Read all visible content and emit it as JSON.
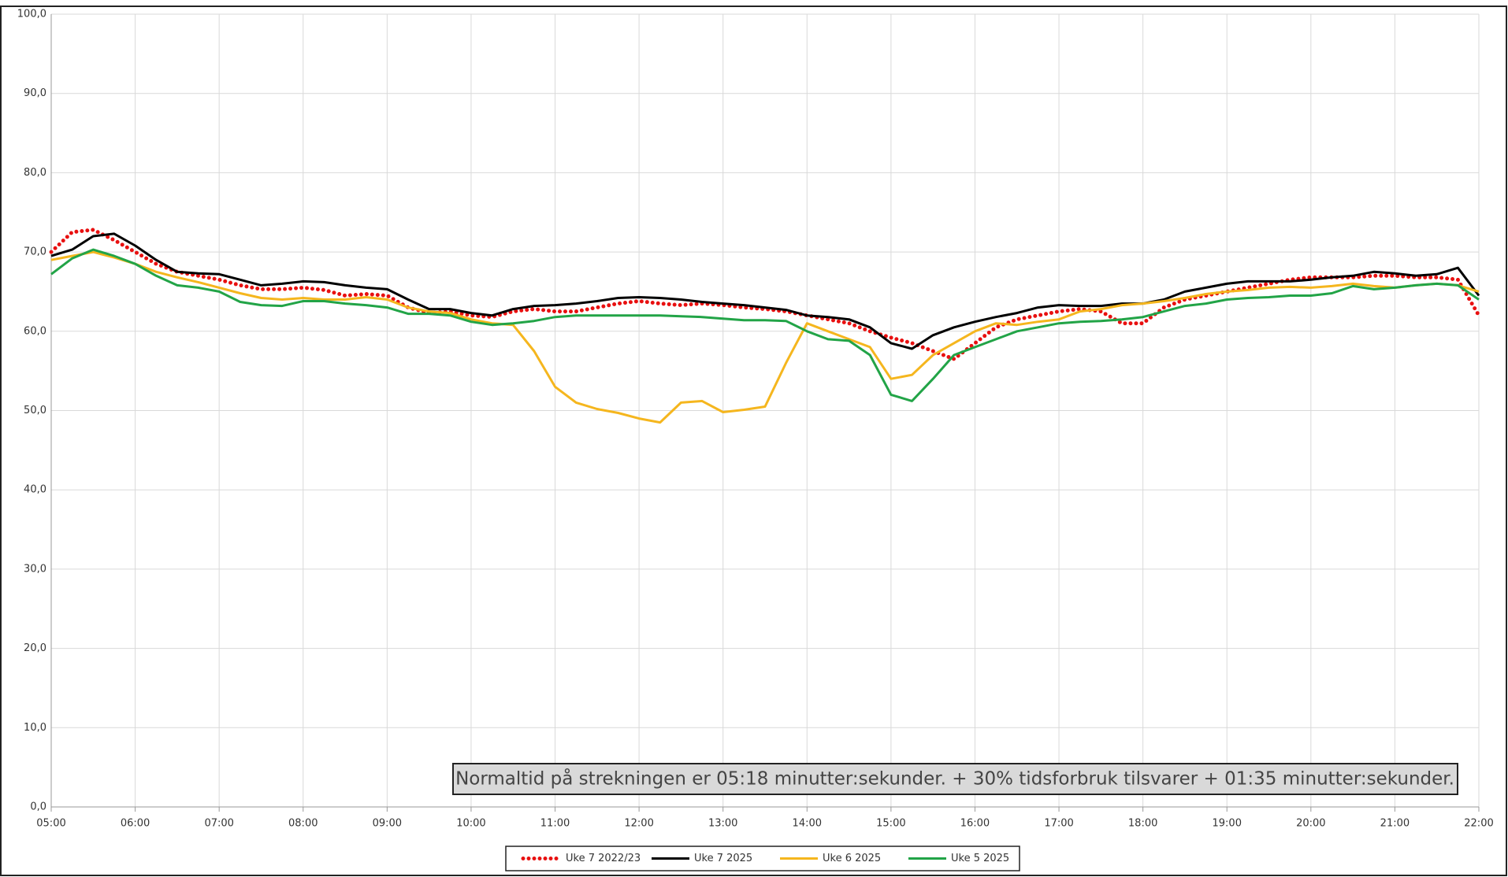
{
  "chart_data": {
    "type": "line",
    "x": [
      5,
      5.25,
      5.5,
      5.75,
      6,
      6.25,
      6.5,
      6.75,
      7,
      7.25,
      7.5,
      7.75,
      8,
      8.25,
      8.5,
      8.75,
      9,
      9.25,
      9.5,
      9.75,
      10,
      10.25,
      10.5,
      10.75,
      11,
      11.25,
      11.5,
      11.75,
      12,
      12.25,
      12.5,
      12.75,
      13,
      13.25,
      13.5,
      13.75,
      14,
      14.25,
      14.5,
      14.75,
      15,
      15.25,
      15.5,
      15.75,
      16,
      16.25,
      16.5,
      16.75,
      17,
      17.25,
      17.5,
      17.75,
      18,
      18.25,
      18.5,
      18.75,
      19,
      19.25,
      19.5,
      19.75,
      20,
      20.25,
      20.5,
      20.75,
      21,
      21.25,
      21.5,
      21.75,
      22
    ],
    "series": [
      {
        "name": "Uke 7 2022/23",
        "color": "#e81010",
        "style": "dotted",
        "values": [
          70,
          72.5,
          72.8,
          71.5,
          70,
          68.5,
          67.5,
          67,
          66.5,
          65.8,
          65.3,
          65.3,
          65.5,
          65.2,
          64.5,
          64.7,
          64.5,
          63,
          62.3,
          62.5,
          62,
          61.8,
          62.5,
          62.8,
          62.5,
          62.5,
          63,
          63.5,
          63.8,
          63.5,
          63.3,
          63.5,
          63.3,
          63,
          62.8,
          62.5,
          62,
          61.5,
          61,
          60,
          59.2,
          58.5,
          57.5,
          56.5,
          58.5,
          60.5,
          61.5,
          62,
          62.5,
          62.8,
          62.5,
          61,
          61,
          63,
          64,
          64.5,
          65,
          65.5,
          66,
          66.5,
          66.8,
          66.8,
          66.8,
          67,
          67,
          66.8,
          66.8,
          66.5,
          62
        ]
      },
      {
        "name": "Uke 7 2025",
        "color": "#000000",
        "style": "solid",
        "values": [
          69.5,
          70.3,
          72,
          72.3,
          70.8,
          69,
          67.5,
          67.3,
          67.2,
          66.5,
          65.8,
          66,
          66.3,
          66.2,
          65.8,
          65.5,
          65.3,
          64,
          62.8,
          62.8,
          62.3,
          62,
          62.8,
          63.2,
          63.3,
          63.5,
          63.8,
          64.2,
          64.3,
          64.2,
          64,
          63.7,
          63.5,
          63.3,
          63,
          62.7,
          62,
          61.8,
          61.5,
          60.5,
          58.5,
          57.8,
          59.5,
          60.5,
          61.2,
          61.8,
          62.3,
          63,
          63.3,
          63.2,
          63.2,
          63.5,
          63.5,
          64,
          65,
          65.5,
          66,
          66.3,
          66.3,
          66.3,
          66.5,
          66.8,
          67,
          67.5,
          67.3,
          67,
          67.2,
          68,
          64.5
        ]
      },
      {
        "name": "Uke 6 2025",
        "color": "#f5b61e",
        "style": "solid",
        "values": [
          69,
          69.5,
          70,
          69.3,
          68.5,
          67.5,
          66.8,
          66.2,
          65.5,
          64.8,
          64.2,
          64,
          64.2,
          64,
          64,
          64.3,
          64,
          63,
          62.5,
          62.3,
          61.5,
          61,
          60.8,
          57.5,
          53,
          51,
          50.2,
          49.7,
          49,
          48.5,
          51,
          51.2,
          49.8,
          50.1,
          50.5,
          56,
          61,
          60,
          59,
          58,
          54,
          54.5,
          57,
          58.5,
          60,
          61,
          60.8,
          61.2,
          61.5,
          62.5,
          62.8,
          63.3,
          63.5,
          63.8,
          64.2,
          64.7,
          65,
          65.2,
          65.5,
          65.6,
          65.5,
          65.7,
          66,
          65.7,
          65.5,
          65.8,
          66,
          65.8,
          65
        ]
      },
      {
        "name": "Uke 5 2025",
        "color": "#22a447",
        "style": "solid",
        "values": [
          67.2,
          69.2,
          70.3,
          69.5,
          68.5,
          67,
          65.8,
          65.5,
          65,
          63.7,
          63.3,
          63.2,
          63.8,
          63.8,
          63.5,
          63.3,
          63,
          62.2,
          62.2,
          62,
          61.2,
          60.8,
          61,
          61.3,
          61.8,
          62,
          62,
          62,
          62,
          62,
          61.9,
          61.8,
          61.6,
          61.4,
          61.4,
          61.3,
          60,
          59,
          58.8,
          57,
          52,
          51.2,
          54,
          57,
          58,
          59,
          60,
          60.5,
          61,
          61.2,
          61.3,
          61.5,
          61.8,
          62.5,
          63.2,
          63.5,
          64,
          64.2,
          64.3,
          64.5,
          64.5,
          64.8,
          65.7,
          65.3,
          65.5,
          65.8,
          66,
          65.8,
          64
        ]
      }
    ],
    "xlim": [
      5,
      22
    ],
    "xticks": [
      {
        "value": 5,
        "label": "05:00"
      },
      {
        "value": 6,
        "label": "06:00"
      },
      {
        "value": 7,
        "label": "07:00"
      },
      {
        "value": 8,
        "label": "08:00"
      },
      {
        "value": 9,
        "label": "09:00"
      },
      {
        "value": 10,
        "label": "10:00"
      },
      {
        "value": 11,
        "label": "11:00"
      },
      {
        "value": 12,
        "label": "12:00"
      },
      {
        "value": 13,
        "label": "13:00"
      },
      {
        "value": 14,
        "label": "14:00"
      },
      {
        "value": 15,
        "label": "15:00"
      },
      {
        "value": 16,
        "label": "16:00"
      },
      {
        "value": 17,
        "label": "17:00"
      },
      {
        "value": 18,
        "label": "18:00"
      },
      {
        "value": 19,
        "label": "19:00"
      },
      {
        "value": 20,
        "label": "20:00"
      },
      {
        "value": 21,
        "label": "21:00"
      },
      {
        "value": 22,
        "label": "22:00"
      }
    ],
    "ylim": [
      0,
      100
    ],
    "yticks": [
      {
        "value": 0,
        "label": "0,0"
      },
      {
        "value": 10,
        "label": "10,0"
      },
      {
        "value": 20,
        "label": "20,0"
      },
      {
        "value": 30,
        "label": "30,0"
      },
      {
        "value": 40,
        "label": "40,0"
      },
      {
        "value": 50,
        "label": "50,0"
      },
      {
        "value": 60,
        "label": "60,0"
      },
      {
        "value": 70,
        "label": "70,0"
      },
      {
        "value": 80,
        "label": "80,0"
      },
      {
        "value": 90,
        "label": "90,0"
      },
      {
        "value": 100,
        "label": "100,0"
      }
    ],
    "grid": true,
    "legend": "bottom",
    "annotation": "Normaltid på strekningen er 05:18 minutter:sekunder. + 30% tidsforbruk tilsvarer  + 01:35 minutter:sekunder."
  }
}
